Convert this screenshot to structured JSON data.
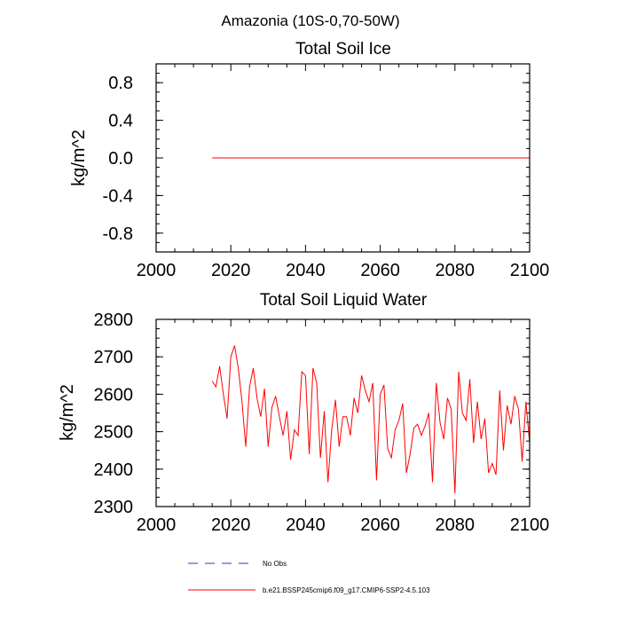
{
  "suptitle": "Amazonia (10S-0,70-50W)",
  "colors": {
    "series": "#ff0000",
    "obs": "#3333cc",
    "axis": "#000000"
  },
  "chart_data": [
    {
      "type": "line",
      "title": "Total Soil Ice",
      "xlabel": "",
      "ylabel": "kg/m^2",
      "xlim": [
        2000,
        2100
      ],
      "ylim": [
        -1.0,
        1.0
      ],
      "xticks": [
        2000,
        2020,
        2040,
        2060,
        2080,
        2100
      ],
      "xtick_labels": [
        "2000",
        "2020",
        "2040",
        "2060",
        "2080",
        "2100"
      ],
      "yticks": [
        0.8,
        0.4,
        0.0,
        -0.4,
        -0.8
      ],
      "ytick_labels": [
        "0.8",
        "0.4",
        "0.0",
        "-0.4",
        "-0.8"
      ],
      "series": [
        {
          "name": "b.e21.BSSP245cmip6.f09_g17.CMIP6-SSP2-4.5.103",
          "x": [
            2015,
            2100
          ],
          "values": [
            0.0,
            0.0
          ]
        }
      ]
    },
    {
      "type": "line",
      "title": "Total Soil Liquid Water",
      "xlabel": "",
      "ylabel": "kg/m^2",
      "xlim": [
        2000,
        2100
      ],
      "ylim": [
        2300,
        2800
      ],
      "xticks": [
        2000,
        2020,
        2040,
        2060,
        2080,
        2100
      ],
      "xtick_labels": [
        "2000",
        "2020",
        "2040",
        "2060",
        "2080",
        "2100"
      ],
      "yticks": [
        2800,
        2700,
        2600,
        2500,
        2400,
        2300
      ],
      "ytick_labels": [
        "2800",
        "2700",
        "2600",
        "2500",
        "2400",
        "2300"
      ],
      "series": [
        {
          "name": "b.e21.BSSP245cmip6.f09_g17.CMIP6-SSP2-4.5.103",
          "x_start": 2015,
          "values": [
            2635,
            2620,
            2675,
            2600,
            2535,
            2700,
            2730,
            2670,
            2580,
            2460,
            2620,
            2670,
            2590,
            2540,
            2615,
            2460,
            2565,
            2595,
            2540,
            2490,
            2555,
            2425,
            2505,
            2490,
            2660,
            2650,
            2440,
            2670,
            2630,
            2430,
            2555,
            2365,
            2505,
            2585,
            2460,
            2540,
            2540,
            2490,
            2590,
            2550,
            2650,
            2610,
            2580,
            2630,
            2370,
            2600,
            2625,
            2455,
            2430,
            2505,
            2530,
            2575,
            2390,
            2440,
            2510,
            2520,
            2490,
            2515,
            2550,
            2365,
            2630,
            2525,
            2480,
            2590,
            2560,
            2335,
            2660,
            2550,
            2530,
            2640,
            2470,
            2580,
            2480,
            2535,
            2390,
            2415,
            2385,
            2610,
            2450,
            2570,
            2520,
            2595,
            2560,
            2420,
            2580,
            2470
          ]
        }
      ]
    }
  ],
  "legend": {
    "items": [
      {
        "label": "No Obs",
        "style": "dashed",
        "color": "#3333cc"
      },
      {
        "label": "b.e21.BSSP245cmip6.f09_g17.CMIP6-SSP2-4.5.103",
        "style": "solid",
        "color": "#ff0000"
      }
    ]
  }
}
